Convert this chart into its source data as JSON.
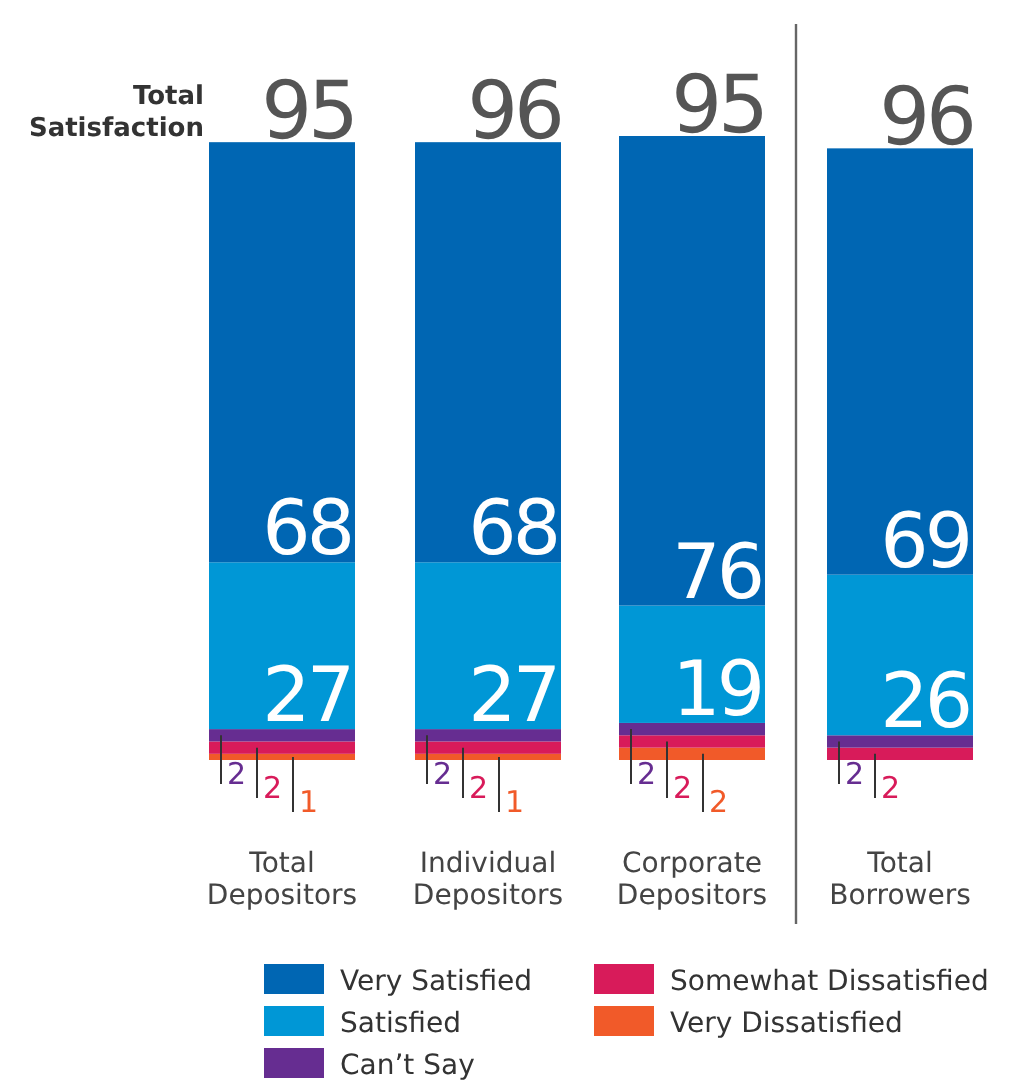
{
  "chart_data": {
    "type": "bar",
    "stacked": true,
    "data_labels": true,
    "legend": "bottom",
    "categories": [
      "Total Depositors",
      "Individual Depositors",
      "Corporate Depositors",
      "Total Borrowers"
    ],
    "series": [
      {
        "name": "Very Dissatisfied",
        "color": "#f15a29",
        "values": [
          1,
          1,
          2,
          null
        ]
      },
      {
        "name": "Somewhat Dissatisfied",
        "color": "#d81b5a",
        "values": [
          2,
          2,
          2,
          2
        ]
      },
      {
        "name": "Can’t Say",
        "color": "#662d91",
        "values": [
          2,
          2,
          2,
          2
        ]
      },
      {
        "name": "Satisfied",
        "color": "#0097d6",
        "values": [
          27,
          27,
          19,
          26
        ]
      },
      {
        "name": "Very Satisfied",
        "color": "#0066b3",
        "values": [
          68,
          68,
          76,
          69
        ]
      }
    ],
    "annotations": [
      "Total Satisfaction",
      {
        "text": "95",
        "x": "Total Depositors",
        "y": 100
      },
      {
        "text": "96",
        "x": "Individual Depositors",
        "y": 100
      },
      {
        "text": "95",
        "x": "Corporate Depositors",
        "y": 101
      },
      {
        "text": "96",
        "x": "Total Borrowers",
        "y": 99
      }
    ]
  }
}
